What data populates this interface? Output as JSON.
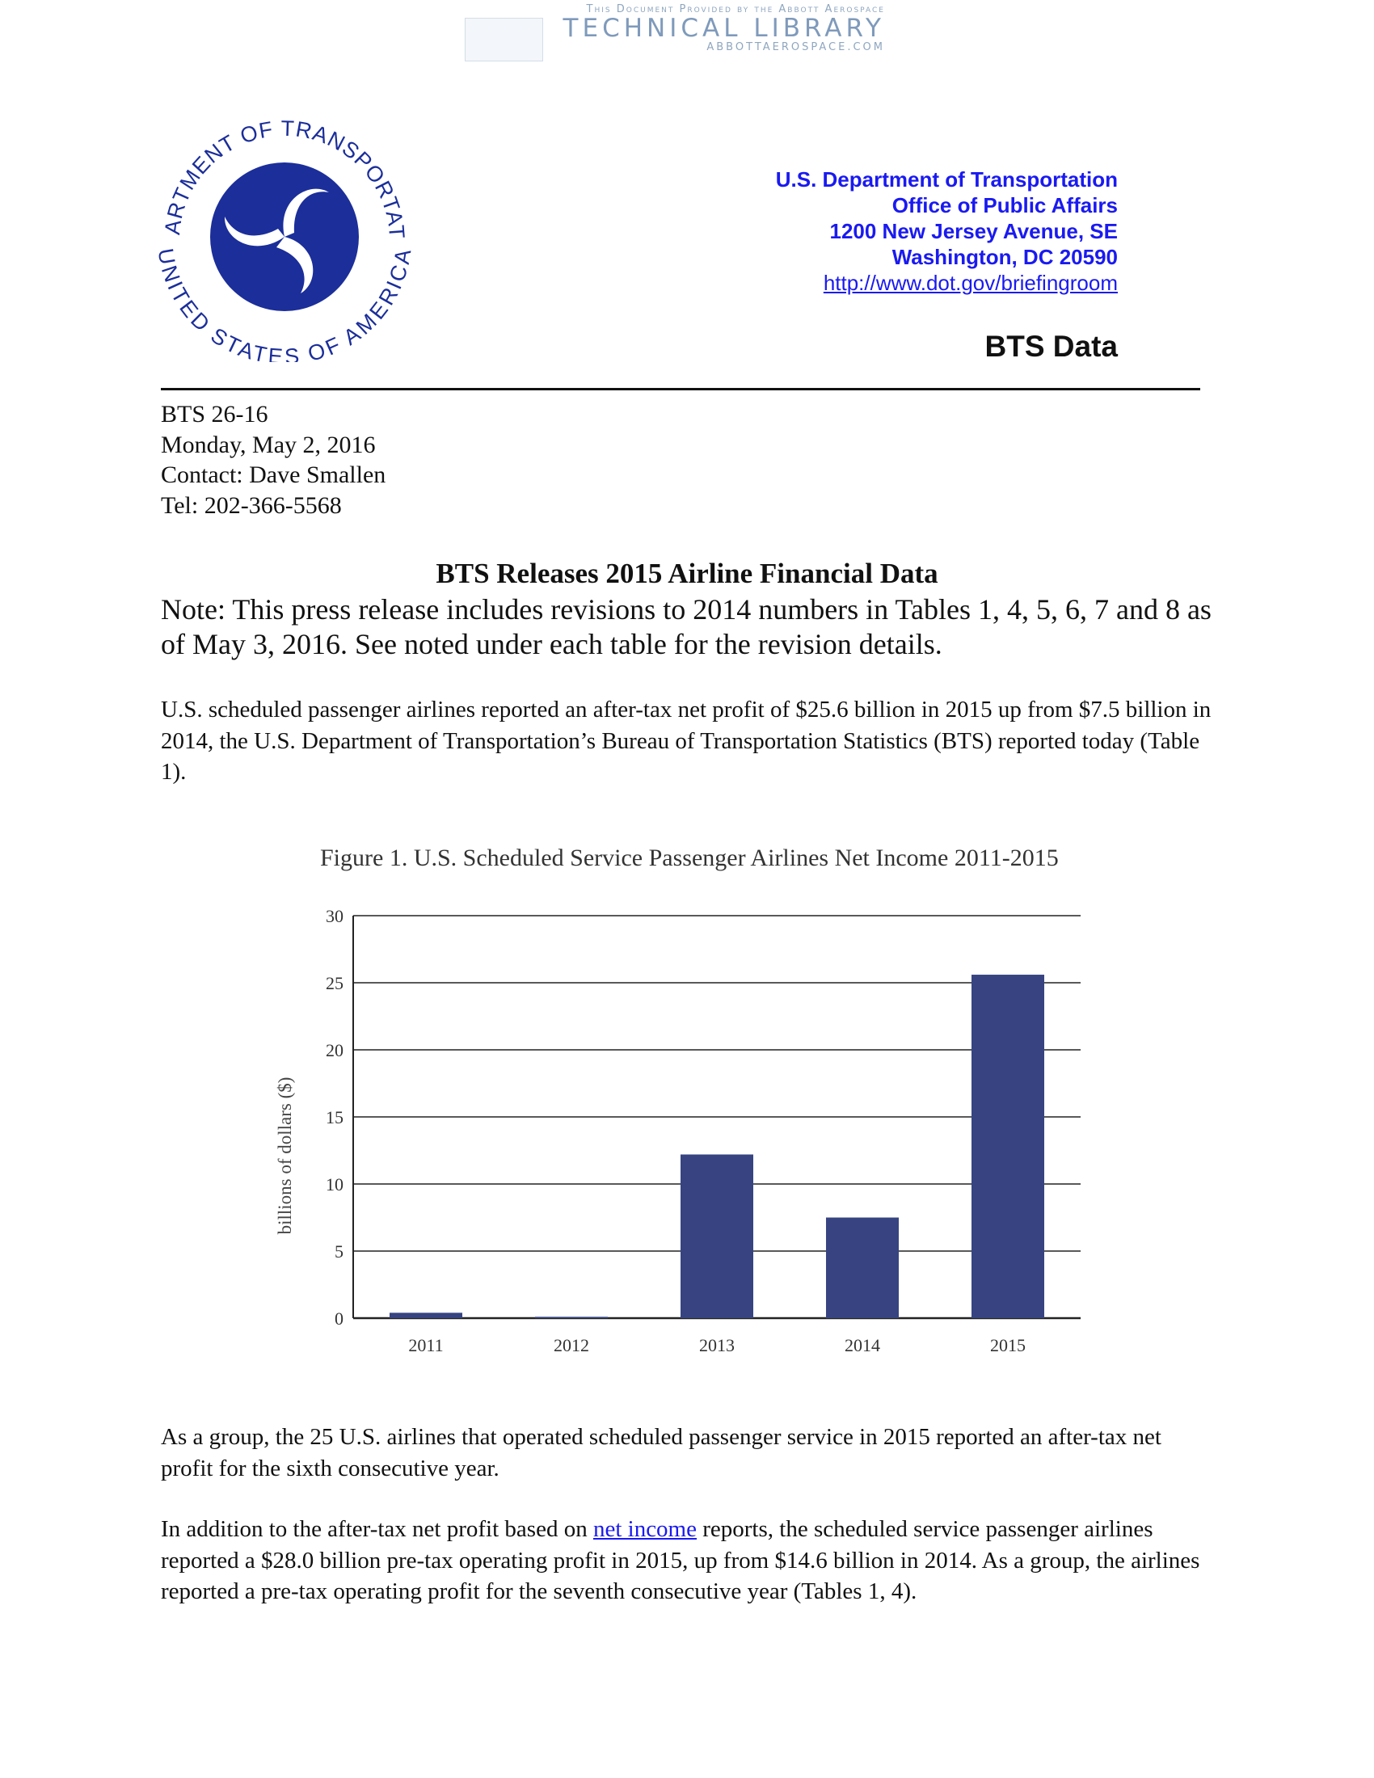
{
  "watermark": {
    "line1": "This Document Provided by the Abbott Aerospace",
    "line2": "TECHNICAL LIBRARY",
    "line3": "ABBOTTAEROSPACE.COM"
  },
  "seal": {
    "top_text": "DEPARTMENT OF TRANSPORTATION",
    "bottom_text": "UNITED STATES OF AMERICA",
    "color": "#1b2e9a"
  },
  "header": {
    "org": "U.S. Department of Transportation",
    "office": "Office of Public Affairs",
    "street": "1200 New Jersey Avenue, SE",
    "city": "Washington, DC  20590",
    "link": "http://www.dot.gov/briefingroom",
    "section": "BTS Data"
  },
  "meta": {
    "release_no": "BTS 26-16",
    "date": "Monday, May 2, 2016",
    "contact": "Contact: Dave Smallen",
    "tel": "Tel:  202-366-5568"
  },
  "headline": "BTS Releases 2015 Airline Financial Data",
  "note": "Note: This press release includes revisions to 2014 numbers in Tables 1, 4, 5, 6, 7 and 8 as of May 3, 2016. See noted under each table for the revision details.",
  "paragraphs": {
    "p1": "U.S. scheduled passenger airlines reported an after-tax net profit of $25.6 billion in 2015 up from $7.5 billion in 2014, the U.S. Department of Transportation’s Bureau of Transportation Statistics (BTS) reported today (Table 1).",
    "p2": "As a group, the 25 U.S. airlines that operated scheduled passenger service in 2015 reported an after-tax net profit for the sixth consecutive year.",
    "p3_before": "In addition to the after-tax net profit based on ",
    "p3_link": "net income",
    "p3_after": " reports, the scheduled service passenger airlines reported a $28.0 billion pre-tax operating profit in 2015, up from $14.6 billion in 2014. As a group, the airlines reported a pre-tax operating profit for the seventh consecutive year (Tables 1, 4)."
  },
  "chart_data": {
    "type": "bar",
    "title": "Figure 1. U.S. Scheduled Service Passenger Airlines Net Income 2011-2015",
    "xlabel": "",
    "ylabel": "billions of dollars ($)",
    "categories": [
      "2011",
      "2012",
      "2013",
      "2014",
      "2015"
    ],
    "values": [
      0.4,
      0.1,
      12.2,
      7.5,
      25.6
    ],
    "ylim": [
      0,
      30
    ],
    "yticks": [
      "0",
      "5",
      "10",
      "15",
      "20",
      "25",
      "30"
    ],
    "grid": true,
    "bar_color": "#374481"
  }
}
